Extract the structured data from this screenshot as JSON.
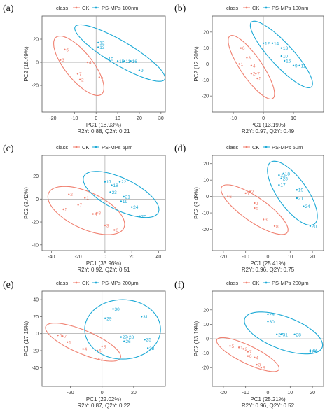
{
  "colors": {
    "ck": "#F08070",
    "ps": "#1BA9D6",
    "frame": "#555555",
    "grid": "#999999",
    "text": "#333333"
  },
  "legend": {
    "title": "class",
    "ck_label": "CK"
  },
  "chart_data": [
    {
      "panel_label": "(a)",
      "type": "scatter",
      "legend_ps_label": "PS-MPs 100nm",
      "xlabel": "PC1 (18.93%)",
      "ylabel": "PC2 (18.49%)",
      "stats": "R2Y: 0.88, Q2Y: 0.21",
      "xlim": [
        -25,
        32
      ],
      "ylim": [
        -43,
        40
      ],
      "xticks": [
        -20,
        -10,
        0,
        10,
        20,
        30
      ],
      "yticks": [
        -20,
        0,
        20
      ],
      "series": [
        {
          "name": "CK",
          "ellipse": {
            "cx": -8,
            "cy": -3,
            "rx": 20,
            "ry": 10,
            "angle": -60
          },
          "points": [
            {
              "label": "6",
              "x": -14.5,
              "y": 11
            },
            {
              "label": "3",
              "x": -16.5,
              "y": 2
            },
            {
              "label": "4",
              "x": -4,
              "y": 0
            },
            {
              "label": "7",
              "x": -8.5,
              "y": -10
            },
            {
              "label": "2",
              "x": -7.5,
              "y": -15
            },
            {
              "label": "5",
              "x": 1.5,
              "y": -13
            }
          ]
        },
        {
          "name": "PS-MPs 100nm",
          "ellipse": {
            "cx": 11,
            "cy": 8,
            "rx": 26,
            "ry": 9.5,
            "angle": -38
          },
          "points": [
            {
              "label": "12",
              "x": 1,
              "y": 17
            },
            {
              "label": "13",
              "x": 1,
              "y": 13
            },
            {
              "label": "10",
              "x": 5,
              "y": 3
            },
            {
              "label": "15",
              "x": 10,
              "y": 1
            },
            {
              "label": "11",
              "x": 13,
              "y": 1
            },
            {
              "label": "16",
              "x": 16,
              "y": 1
            },
            {
              "label": "9",
              "x": 20,
              "y": -7
            }
          ]
        }
      ]
    },
    {
      "panel_label": "(b)",
      "type": "scatter",
      "legend_ps_label": "PS-MPs 100nm",
      "xlabel": "PC1 (13.19%)",
      "ylabel": "PC2 (12.20%)",
      "stats": "R2Y: 0.97, Q2Y: 0.49",
      "xlim": [
        -17,
        20
      ],
      "ylim": [
        -30,
        30
      ],
      "xticks": [
        -10,
        0,
        10
      ],
      "yticks": [
        -20,
        -10,
        0,
        10,
        20
      ],
      "series": [
        {
          "name": "CK",
          "ellipse": {
            "cx": -4,
            "cy": -2,
            "rx": 14,
            "ry": 6,
            "angle": -60
          },
          "points": [
            {
              "label": "6",
              "x": -7.5,
              "y": 10
            },
            {
              "label": "3",
              "x": -5.5,
              "y": 4
            },
            {
              "label": "1",
              "x": -8,
              "y": 0
            },
            {
              "label": "4",
              "x": -4,
              "y": -1
            },
            {
              "label": "2",
              "x": -4,
              "y": -6
            },
            {
              "label": "7",
              "x": -2.5,
              "y": -6
            },
            {
              "label": "5",
              "x": -2,
              "y": -9
            }
          ]
        },
        {
          "name": "PS-MPs 100nm",
          "ellipse": {
            "cx": 6,
            "cy": 6,
            "rx": 16,
            "ry": 6.5,
            "angle": -52
          },
          "points": [
            {
              "label": "12",
              "x": 0,
              "y": 13
            },
            {
              "label": "14",
              "x": 3,
              "y": 13
            },
            {
              "label": "13",
              "x": 6,
              "y": 10
            },
            {
              "label": "10",
              "x": 6,
              "y": 5
            },
            {
              "label": "15",
              "x": 7,
              "y": 2
            },
            {
              "label": "9",
              "x": 10,
              "y": -1
            },
            {
              "label": "11",
              "x": 12,
              "y": -1
            }
          ]
        }
      ]
    },
    {
      "panel_label": "(c)",
      "type": "scatter",
      "legend_ps_label": "PS-MPs 5μm",
      "xlabel": "PC1 (33.96%)",
      "ylabel": "PC2 (9.42%)",
      "stats": "R2Y: 0.92, Q2Y: 0.51",
      "xlim": [
        -47,
        45
      ],
      "ylim": [
        -45,
        38
      ],
      "xticks": [
        -40,
        -20,
        0,
        20,
        40
      ],
      "yticks": [
        -40,
        -20,
        0,
        20
      ],
      "series": [
        {
          "name": "CK",
          "ellipse": {
            "cx": -14,
            "cy": -10,
            "rx": 33,
            "ry": 15,
            "angle": -35
          },
          "points": [
            {
              "label": "2",
              "x": -27,
              "y": 4
            },
            {
              "label": "1",
              "x": -15,
              "y": 1
            },
            {
              "label": "7",
              "x": -20,
              "y": -5
            },
            {
              "label": "5",
              "x": -31,
              "y": -9
            },
            {
              "label": "4",
              "x": -9,
              "y": -13
            },
            {
              "label": "8",
              "x": -6,
              "y": -12
            },
            {
              "label": "3",
              "x": 0,
              "y": -23
            },
            {
              "label": "6",
              "x": 7,
              "y": -27
            }
          ]
        },
        {
          "name": "PS-MPs 5μm",
          "ellipse": {
            "cx": 12,
            "cy": 4,
            "rx": 33,
            "ry": 13,
            "angle": -35
          },
          "points": [
            {
              "label": "17",
              "x": 0,
              "y": 15
            },
            {
              "label": "22",
              "x": 11,
              "y": 15
            },
            {
              "label": "18",
              "x": 5,
              "y": 12
            },
            {
              "label": "23",
              "x": 4,
              "y": 6
            },
            {
              "label": "21",
              "x": 14,
              "y": 2
            },
            {
              "label": "19",
              "x": 12,
              "y": -2
            },
            {
              "label": "24",
              "x": 20,
              "y": -7
            },
            {
              "label": "20",
              "x": 26,
              "y": -15
            }
          ]
        }
      ]
    },
    {
      "panel_label": "(d)",
      "type": "scatter",
      "legend_ps_label": "PS-MPs 5μm",
      "xlabel": "PC1 (25.41%)",
      "ylabel": "PC2 (9.49%)",
      "stats": "R2Y: 0.96, Q2Y: 0.75",
      "xlim": [
        -25,
        25
      ],
      "ylim": [
        -33,
        25
      ],
      "xticks": [
        -20,
        -10,
        0,
        10,
        20
      ],
      "yticks": [
        -20,
        -10,
        0,
        10,
        20
      ],
      "series": [
        {
          "name": "CK",
          "ellipse": {
            "cx": -6,
            "cy": -8,
            "rx": 19,
            "ry": 7,
            "angle": -40
          },
          "points": [
            {
              "label": "7",
              "x": -10,
              "y": 2
            },
            {
              "label": "2",
              "x": -8,
              "y": 3
            },
            {
              "label": "6",
              "x": -18,
              "y": 0
            },
            {
              "label": "1",
              "x": -6,
              "y": -4
            },
            {
              "label": "5",
              "x": -6,
              "y": -7
            },
            {
              "label": "3",
              "x": -2,
              "y": -14
            },
            {
              "label": "8",
              "x": 3,
              "y": -18
            }
          ]
        },
        {
          "name": "PS-MPs 5μm",
          "ellipse": {
            "cx": 11,
            "cy": 2,
            "rx": 19,
            "ry": 8,
            "angle": -60
          },
          "points": [
            {
              "label": "18",
              "x": 7,
              "y": 14
            },
            {
              "label": "22",
              "x": 5,
              "y": 13
            },
            {
              "label": "23",
              "x": 6,
              "y": 11
            },
            {
              "label": "17",
              "x": 5,
              "y": 7
            },
            {
              "label": "19",
              "x": 13,
              "y": 4
            },
            {
              "label": "21",
              "x": 13,
              "y": -1
            },
            {
              "label": "24",
              "x": 16,
              "y": -6
            },
            {
              "label": "20",
              "x": 19,
              "y": -18
            }
          ]
        }
      ]
    },
    {
      "panel_label": "(e)",
      "type": "scatter",
      "legend_ps_label": "PS-MPs 200μm",
      "xlabel": "PC1 (22.02%)",
      "ylabel": "PC2 (17.15%)",
      "stats": "R2Y: 0.87, Q2Y: 0.22",
      "xlim": [
        -38,
        40
      ],
      "ylim": [
        -62,
        50
      ],
      "xticks": [
        -20,
        0,
        20
      ],
      "yticks": [
        -40,
        -20,
        0,
        20,
        40
      ],
      "series": [
        {
          "name": "CK",
          "ellipse": {
            "cx": -12,
            "cy": -10,
            "rx": 27,
            "ry": 13,
            "angle": -30
          },
          "points": [
            {
              "label": "5",
              "x": -28,
              "y": -2
            },
            {
              "label": "7",
              "x": -25,
              "y": -3
            },
            {
              "label": "1",
              "x": -22,
              "y": -10
            },
            {
              "label": "4",
              "x": -12,
              "y": -18
            },
            {
              "label": "6",
              "x": -3,
              "y": -20
            },
            {
              "label": "8",
              "x": 0,
              "y": -15
            },
            {
              "label": "3",
              "x": -2,
              "y": -30
            }
          ]
        },
        {
          "name": "PS-MPs 200μm",
          "ellipse": {
            "cx": 13,
            "cy": 5,
            "rx": 24,
            "ry": 35,
            "angle": 0
          },
          "points": [
            {
              "label": "30",
              "x": 7,
              "y": 29
            },
            {
              "label": "31",
              "x": 25,
              "y": 20
            },
            {
              "label": "29",
              "x": 2,
              "y": 18
            },
            {
              "label": "27",
              "x": 12,
              "y": -4
            },
            {
              "label": "28",
              "x": 16,
              "y": -4
            },
            {
              "label": "26",
              "x": 14,
              "y": -9
            },
            {
              "label": "25",
              "x": 27,
              "y": -7
            },
            {
              "label": "32",
              "x": 29,
              "y": -17
            }
          ]
        }
      ]
    },
    {
      "panel_label": "(f)",
      "type": "scatter",
      "legend_ps_label": "PS-MPs 200μm",
      "xlabel": "PC1 (25.21%)",
      "ylabel": "PC2 (13.19%)",
      "stats": "R2Y: 0.96, Q2Y: 0.52",
      "xlim": [
        -25,
        25
      ],
      "ylim": [
        -33,
        33
      ],
      "xticks": [
        -20,
        -10,
        0,
        10,
        20
      ],
      "yticks": [
        -20,
        -10,
        0,
        10,
        20
      ],
      "series": [
        {
          "name": "CK",
          "ellipse": {
            "cx": -9,
            "cy": -11,
            "rx": 16,
            "ry": 6,
            "angle": -30
          },
          "points": [
            {
              "label": "5",
              "x": -17,
              "y": -5
            },
            {
              "label": "1",
              "x": -13,
              "y": -6
            },
            {
              "label": "2",
              "x": -11,
              "y": -7
            },
            {
              "label": "7",
              "x": -9,
              "y": -9
            },
            {
              "label": "6",
              "x": -9,
              "y": -12
            },
            {
              "label": "4",
              "x": -6,
              "y": -13
            },
            {
              "label": "3",
              "x": -5,
              "y": -18
            },
            {
              "label": "8",
              "x": -3,
              "y": -20
            }
          ]
        },
        {
          "name": "PS-MPs 200μm",
          "ellipse": {
            "cx": 7,
            "cy": 4,
            "rx": 19,
            "ry": 11,
            "angle": -25
          },
          "points": [
            {
              "label": "29",
              "x": 0,
              "y": 17
            },
            {
              "label": "30",
              "x": 0,
              "y": 12
            },
            {
              "label": "27",
              "x": 4,
              "y": 3
            },
            {
              "label": "31",
              "x": 6,
              "y": 3
            },
            {
              "label": "28",
              "x": 12,
              "y": 3
            },
            {
              "label": "32",
              "x": 19,
              "y": -8
            },
            {
              "label": "25",
              "x": 19,
              "y": -9
            }
          ]
        }
      ]
    }
  ]
}
